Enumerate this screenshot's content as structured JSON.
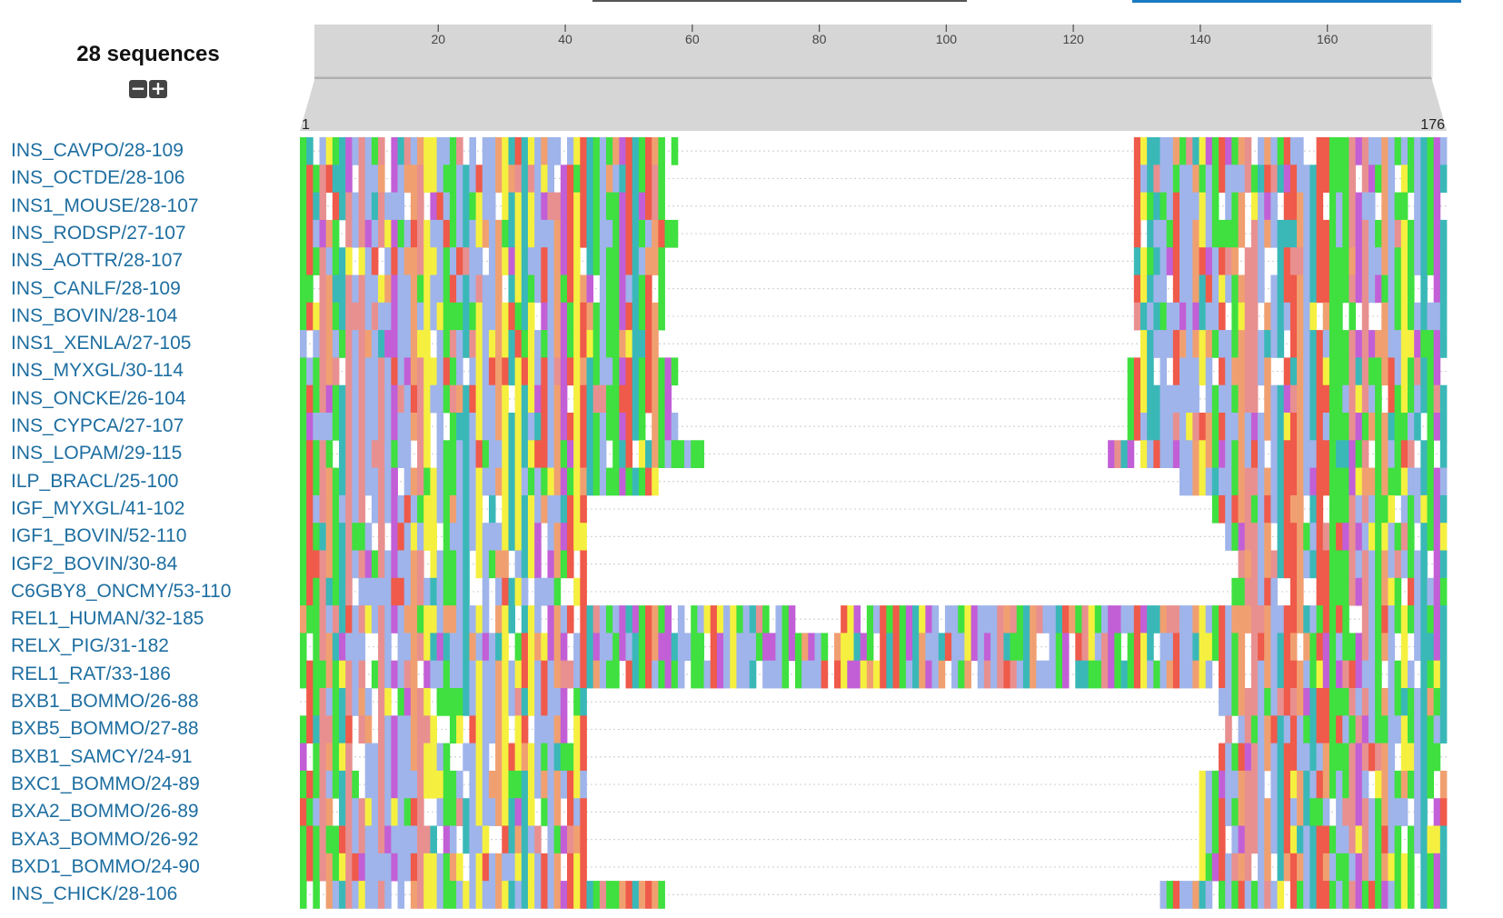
{
  "header": {
    "sequence_count": "28 sequences",
    "zoom_out_label": "−",
    "zoom_in_label": "+"
  },
  "axis": {
    "ticks": [
      "20",
      "40",
      "60",
      "80",
      "100",
      "120",
      "140",
      "160"
    ],
    "range_start": "1",
    "range_end": "176",
    "length": 176
  },
  "colors": {
    "hydrophobic": "#9fb4ea",
    "positive": "#ef5a4a",
    "negative": "#c25fd6",
    "polar": "#3fe03f",
    "glycine": "#f0a070",
    "proline": "#f5f040",
    "aromatic": "#3ab8b8",
    "cysteine": "#e89090",
    "gap_dots": "#d4d4d4",
    "ruler_bg": "#d6d6d6",
    "label_color": "#1e6ea0",
    "tab_active": "#1a7bc4"
  },
  "sequences": [
    {
      "name": "INS_CAVPO/28-109",
      "segments": [
        [
          1,
          58
        ],
        [
          129,
          176
        ]
      ]
    },
    {
      "name": "INS_OCTDE/28-106",
      "segments": [
        [
          1,
          57
        ],
        [
          129,
          176
        ]
      ]
    },
    {
      "name": "INS1_MOUSE/28-107",
      "segments": [
        [
          1,
          56
        ],
        [
          129,
          176
        ]
      ]
    },
    {
      "name": "INS_RODSP/27-107",
      "segments": [
        [
          1,
          58
        ],
        [
          129,
          176
        ]
      ]
    },
    {
      "name": "INS_AOTTR/28-107",
      "segments": [
        [
          1,
          56
        ],
        [
          129,
          176
        ]
      ]
    },
    {
      "name": "INS_CANLF/28-109",
      "segments": [
        [
          1,
          56
        ],
        [
          129,
          176
        ]
      ]
    },
    {
      "name": "INS_BOVIN/28-104",
      "segments": [
        [
          1,
          56
        ],
        [
          129,
          176
        ]
      ]
    },
    {
      "name": "INS1_XENLA/27-105",
      "segments": [
        [
          1,
          55
        ],
        [
          130,
          176
        ]
      ]
    },
    {
      "name": "INS_MYXGL/30-114",
      "segments": [
        [
          1,
          58
        ],
        [
          128,
          176
        ]
      ]
    },
    {
      "name": "INS_ONCKE/26-104",
      "segments": [
        [
          1,
          57
        ],
        [
          128,
          176
        ]
      ]
    },
    {
      "name": "INS_CYPCA/27-107",
      "segments": [
        [
          1,
          58
        ],
        [
          128,
          176
        ]
      ]
    },
    {
      "name": "INS_LOPAM/29-115",
      "segments": [
        [
          1,
          62
        ],
        [
          125,
          176
        ]
      ]
    },
    {
      "name": "ILP_BRACL/25-100",
      "segments": [
        [
          1,
          55
        ],
        [
          136,
          176
        ]
      ]
    },
    {
      "name": "IGF_MYXGL/41-102",
      "segments": [
        [
          1,
          44
        ],
        [
          141,
          176
        ]
      ]
    },
    {
      "name": "IGF1_BOVIN/52-110",
      "segments": [
        [
          1,
          44
        ],
        [
          143,
          176
        ]
      ]
    },
    {
      "name": "IGF2_BOVIN/30-84",
      "segments": [
        [
          1,
          44
        ],
        [
          145,
          176
        ]
      ]
    },
    {
      "name": "C6GBY8_ONCMY/53-110",
      "segments": [
        [
          1,
          44
        ],
        [
          144,
          176
        ]
      ]
    },
    {
      "name": "REL1_HUMAN/32-185",
      "segments": [
        [
          1,
          76
        ],
        [
          82,
          176
        ]
      ]
    },
    {
      "name": "RELX_PIG/31-182",
      "segments": [
        [
          1,
          44
        ],
        [
          45,
          176
        ]
      ]
    },
    {
      "name": "REL1_RAT/33-186",
      "segments": [
        [
          1,
          44
        ],
        [
          45,
          176
        ]
      ]
    },
    {
      "name": "BXB1_BOMMO/26-88",
      "segments": [
        [
          1,
          44
        ],
        [
          142,
          176
        ]
      ]
    },
    {
      "name": "BXB5_BOMMO/27-88",
      "segments": [
        [
          1,
          44
        ],
        [
          142,
          176
        ]
      ]
    },
    {
      "name": "BXB1_SAMCY/24-91",
      "segments": [
        [
          1,
          44
        ],
        [
          142,
          176
        ]
      ]
    },
    {
      "name": "BXC1_BOMMO/24-89",
      "segments": [
        [
          1,
          44
        ],
        [
          139,
          176
        ]
      ]
    },
    {
      "name": "BXA2_BOMMO/26-89",
      "segments": [
        [
          1,
          44
        ],
        [
          139,
          176
        ]
      ]
    },
    {
      "name": "BXA3_BOMMO/26-92",
      "segments": [
        [
          1,
          44
        ],
        [
          139,
          176
        ]
      ]
    },
    {
      "name": "BXD1_BOMMO/24-90",
      "segments": [
        [
          1,
          44
        ],
        [
          139,
          176
        ]
      ]
    },
    {
      "name": "INS_CHICK/28-106",
      "segments": [
        [
          1,
          56
        ],
        [
          133,
          176
        ]
      ]
    }
  ]
}
